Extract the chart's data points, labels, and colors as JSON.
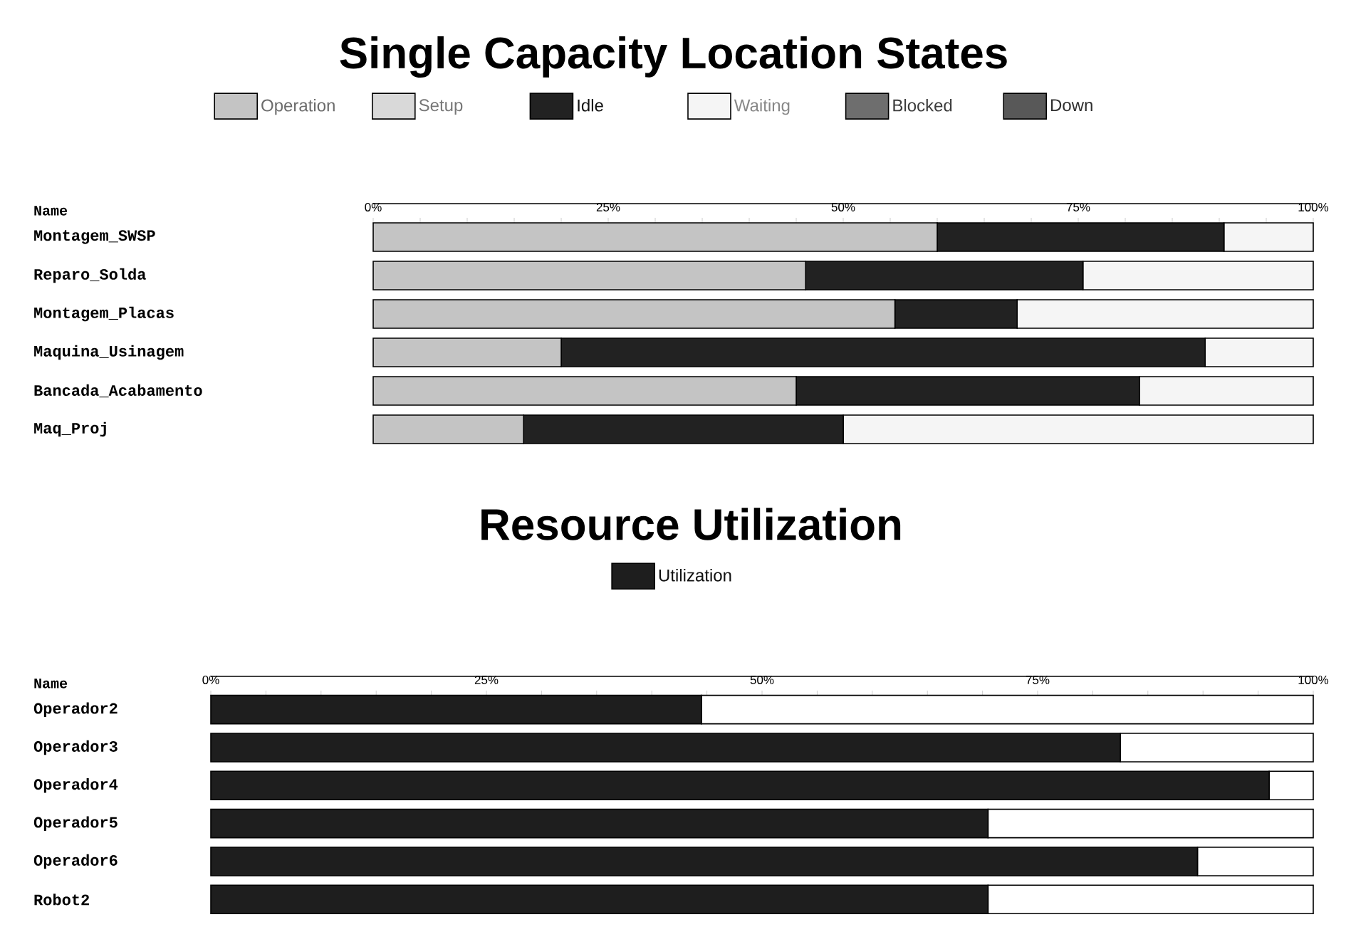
{
  "chart_data": [
    {
      "type": "bar",
      "orientation": "horizontal",
      "stacked": true,
      "title": "Single Capacity Location States",
      "ylabel": "Name",
      "legend": "top",
      "categories": [
        "Montagem_SWSP",
        "Reparo_Solda",
        "Montagem_Placas",
        "Maquina_Usinagem",
        "Bancada_Acabamento",
        "Maq_Proj"
      ],
      "xlim": [
        0,
        100
      ],
      "xticks": [
        {
          "value": 0,
          "label": "0%"
        },
        {
          "value": 5,
          "label": null
        },
        {
          "value": 10,
          "label": null
        },
        {
          "value": 15,
          "label": null
        },
        {
          "value": 20,
          "label": null
        },
        {
          "value": 25,
          "label": "25%"
        },
        {
          "value": 30,
          "label": null
        },
        {
          "value": 35,
          "label": null
        },
        {
          "value": 40,
          "label": null
        },
        {
          "value": 45,
          "label": null
        },
        {
          "value": 50,
          "label": "50%"
        },
        {
          "value": 55,
          "label": null
        },
        {
          "value": 60,
          "label": null
        },
        {
          "value": 65,
          "label": null
        },
        {
          "value": 70,
          "label": null
        },
        {
          "value": 75,
          "label": "75%"
        },
        {
          "value": 80,
          "label": null
        },
        {
          "value": 85,
          "label": null
        },
        {
          "value": 90,
          "label": null
        },
        {
          "value": 95,
          "label": null
        },
        {
          "value": 100,
          "label": "100%"
        }
      ],
      "series": [
        {
          "name": "Operation",
          "color": "#c4c4c4",
          "values": [
            60,
            46,
            55.5,
            20,
            45,
            16
          ]
        },
        {
          "name": "Setup",
          "color": "#d9d9d9",
          "values": [
            0,
            0,
            0,
            0,
            0,
            0
          ]
        },
        {
          "name": "Idle",
          "color": "#222222",
          "values": [
            30.5,
            29.5,
            13,
            68.5,
            36.5,
            34
          ]
        },
        {
          "name": "Waiting",
          "color": "#f5f5f5",
          "values": [
            9.5,
            24.5,
            31.5,
            11.5,
            18.5,
            50
          ]
        },
        {
          "name": "Blocked",
          "color": "#6e6e6e",
          "values": [
            0,
            0,
            0,
            0,
            0,
            0
          ]
        },
        {
          "name": "Down",
          "color": "#585858",
          "values": [
            0,
            0,
            0,
            0,
            0,
            0
          ]
        }
      ]
    },
    {
      "type": "bar",
      "orientation": "horizontal",
      "stacked": true,
      "title": "Resource Utilization",
      "ylabel": "Name",
      "legend": "top",
      "categories": [
        "Operador2",
        "Operador3",
        "Operador4",
        "Operador5",
        "Operador6",
        "Robot2"
      ],
      "xlim": [
        0,
        100
      ],
      "xticks": [
        {
          "value": 0,
          "label": "0%"
        },
        {
          "value": 5,
          "label": null
        },
        {
          "value": 10,
          "label": null
        },
        {
          "value": 15,
          "label": null
        },
        {
          "value": 20,
          "label": null
        },
        {
          "value": 25,
          "label": "25%"
        },
        {
          "value": 30,
          "label": null
        },
        {
          "value": 35,
          "label": null
        },
        {
          "value": 40,
          "label": null
        },
        {
          "value": 45,
          "label": null
        },
        {
          "value": 50,
          "label": "50%"
        },
        {
          "value": 55,
          "label": null
        },
        {
          "value": 60,
          "label": null
        },
        {
          "value": 65,
          "label": null
        },
        {
          "value": 70,
          "label": null
        },
        {
          "value": 75,
          "label": "75%"
        },
        {
          "value": 80,
          "label": null
        },
        {
          "value": 85,
          "label": null
        },
        {
          "value": 90,
          "label": null
        },
        {
          "value": 95,
          "label": null
        },
        {
          "value": 100,
          "label": "100%"
        }
      ],
      "series": [
        {
          "name": "Utilization",
          "color": "#1e1e1e",
          "values": [
            44.5,
            82.5,
            96,
            70.5,
            89.5,
            70.5
          ]
        },
        {
          "color": "#ffffff",
          "values": [
            55.5,
            17.5,
            4,
            29.5,
            10.5,
            29.5
          ]
        }
      ]
    }
  ]
}
